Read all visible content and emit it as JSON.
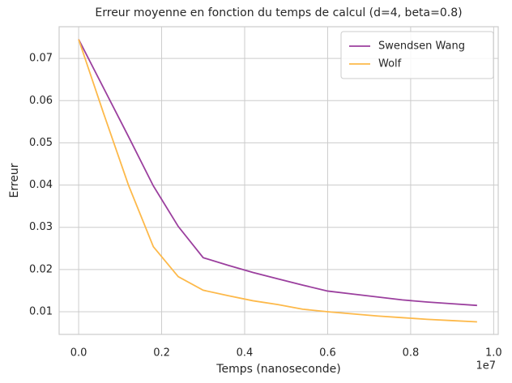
{
  "chart_data": {
    "type": "line",
    "title": "Erreur moyenne en fonction du temps de calcul (d=4, beta=0.8)",
    "x_label": "Temps (nanoseconde)",
    "y_label": "Erreur",
    "x_offset_label": "1e7",
    "x": [
      0,
      0.06,
      0.12,
      0.18,
      0.24,
      0.3,
      0.36,
      0.42,
      0.48,
      0.54,
      0.6,
      0.66,
      0.72,
      0.78,
      0.84,
      0.9,
      0.96
    ],
    "series": [
      {
        "name": "Swendsen Wang",
        "color": "#9b3f9e",
        "values": [
          0.0745,
          0.063,
          0.0515,
          0.0398,
          0.0302,
          0.0228,
          0.021,
          0.0193,
          0.0178,
          0.0163,
          0.0149,
          0.0142,
          0.0135,
          0.0128,
          0.0123,
          0.0119,
          0.0115
        ]
      },
      {
        "name": "Wolf",
        "color": "#fdb94a",
        "values": [
          0.0745,
          0.057,
          0.04,
          0.0254,
          0.0183,
          0.0151,
          0.0138,
          0.0126,
          0.0117,
          0.0106,
          0.01,
          0.0095,
          0.009,
          0.0086,
          0.0082,
          0.0079,
          0.0076
        ]
      }
    ],
    "xlim": [
      -0.047,
      1.011
    ],
    "ylim": [
      0.00463,
      0.0775
    ],
    "xticks": [
      {
        "value": 0,
        "label": "0.0"
      },
      0.2,
      0.4,
      0.6,
      0.8,
      {
        "value": 1,
        "label": "1.0"
      }
    ],
    "yticks": [
      0.01,
      0.02,
      0.03,
      0.04,
      0.05,
      0.06,
      0.07
    ],
    "grid": true,
    "legend": "upper right"
  }
}
